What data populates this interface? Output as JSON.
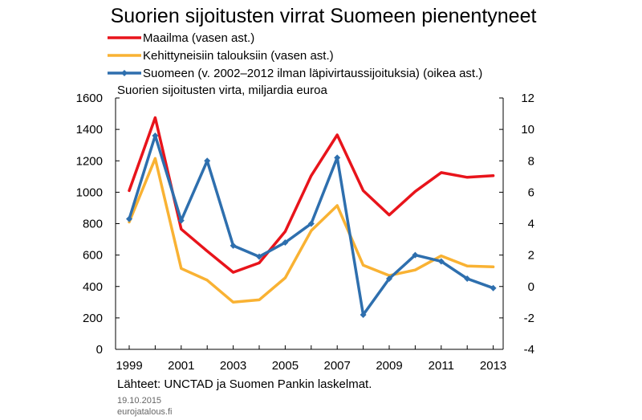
{
  "chart_data": {
    "type": "line",
    "title": "Suorien sijoitusten virrat Suomeen pienentyneet",
    "subtitle": "Suorien sijoitusten virta, miljardia  euroa",
    "x": [
      1999,
      2000,
      2001,
      2002,
      2003,
      2004,
      2005,
      2006,
      2007,
      2008,
      2009,
      2010,
      2011,
      2012,
      2013
    ],
    "x_tick_labels": [
      "1999",
      "2001",
      "2003",
      "2005",
      "2007",
      "2009",
      "2011",
      "2013"
    ],
    "y_left": {
      "range": [
        0,
        1600
      ],
      "ticks": [
        "0",
        "200",
        "400",
        "600",
        "800",
        "1000",
        "1200",
        "1400",
        "1600"
      ]
    },
    "y_right": {
      "range": [
        -4,
        12
      ],
      "ticks": [
        "-4",
        "-2",
        "0",
        "2",
        "4",
        "6",
        "8",
        "10",
        "12"
      ]
    },
    "series": [
      {
        "name": "Maailma (vasen ast.)",
        "axis": "left",
        "color": "#e8141b",
        "markers": false,
        "values": [
          1010,
          1475,
          765,
          625,
          490,
          550,
          750,
          1105,
          1365,
          1010,
          855,
          1005,
          1125,
          1095,
          1105
        ]
      },
      {
        "name": "Kehittyneisiin talouksiin (vasen ast.)",
        "axis": "left",
        "color": "#f9b233",
        "markers": false,
        "values": [
          810,
          1215,
          515,
          440,
          300,
          315,
          455,
          755,
          915,
          535,
          470,
          505,
          595,
          530,
          525
        ]
      },
      {
        "name": "Suomeen (v. 2002–2012 ilman läpivirtaussijoituksia) (oikea ast.)",
        "axis": "right",
        "color": "#2e6fae",
        "markers": true,
        "values": [
          4.3,
          9.6,
          4.2,
          8.0,
          2.6,
          1.9,
          2.8,
          4.0,
          8.2,
          -1.8,
          0.5,
          2.0,
          1.6,
          0.5,
          -0.1
        ]
      }
    ],
    "source": "Lähteet: UNCTAD ja Suomen Pankin laskelmat.",
    "date": "19.10.2015",
    "site": "eurojatalous.fi"
  }
}
